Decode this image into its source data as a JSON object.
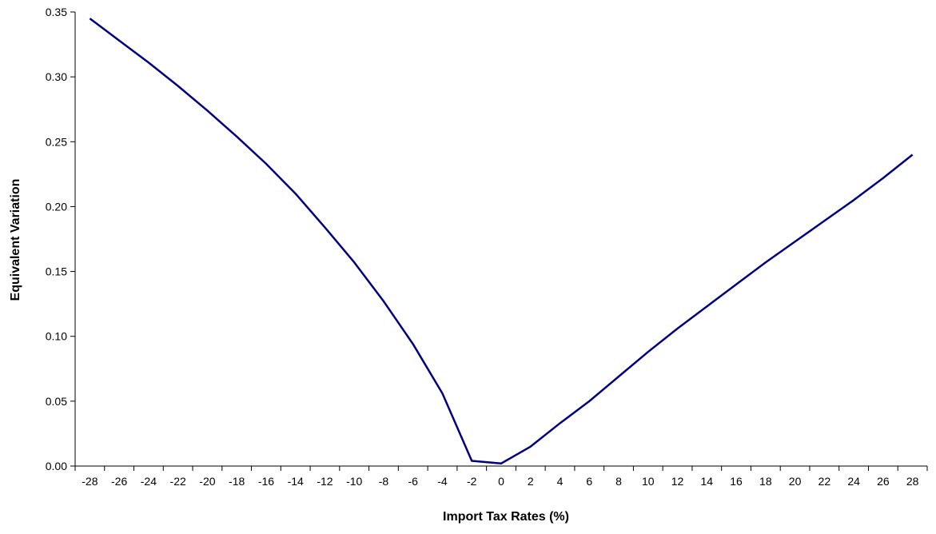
{
  "chart_data": {
    "type": "line",
    "title": "",
    "xlabel": "Import Tax Rates (%)",
    "ylabel": "Equivalent Variation",
    "x_tick_labels": [
      "-28",
      "-26",
      "-24",
      "-22",
      "-20",
      "-18",
      "-16",
      "-14",
      "-12",
      "-10",
      "-8",
      "-6",
      "-4",
      "-2",
      "0",
      "2",
      "4",
      "6",
      "8",
      "10",
      "12",
      "14",
      "16",
      "18",
      "20",
      "22",
      "24",
      "26",
      "28"
    ],
    "y_tick_labels": [
      "0.00",
      "0.05",
      "0.10",
      "0.15",
      "0.20",
      "0.25",
      "0.30",
      "0.35"
    ],
    "ylim": [
      0,
      0.35
    ],
    "grid": false,
    "legend": "none",
    "line_color": "#000080",
    "series": [
      {
        "x": [
          -28,
          -26,
          -24,
          -22,
          -20,
          -18,
          -16,
          -14,
          -12,
          -10,
          -8,
          -6,
          -4,
          -2,
          0,
          2,
          4,
          6,
          8,
          10,
          12,
          14,
          16,
          18,
          20,
          22,
          24,
          26,
          28
        ],
        "values": [
          0.345,
          0.328,
          0.311,
          0.293,
          0.274,
          0.254,
          0.233,
          0.21,
          0.184,
          0.157,
          0.127,
          0.094,
          0.056,
          0.004,
          0.002,
          0.015,
          0.033,
          0.05,
          0.069,
          0.088,
          0.106,
          0.123,
          0.14,
          0.157,
          0.173,
          0.189,
          0.205,
          0.222,
          0.24
        ]
      }
    ]
  }
}
